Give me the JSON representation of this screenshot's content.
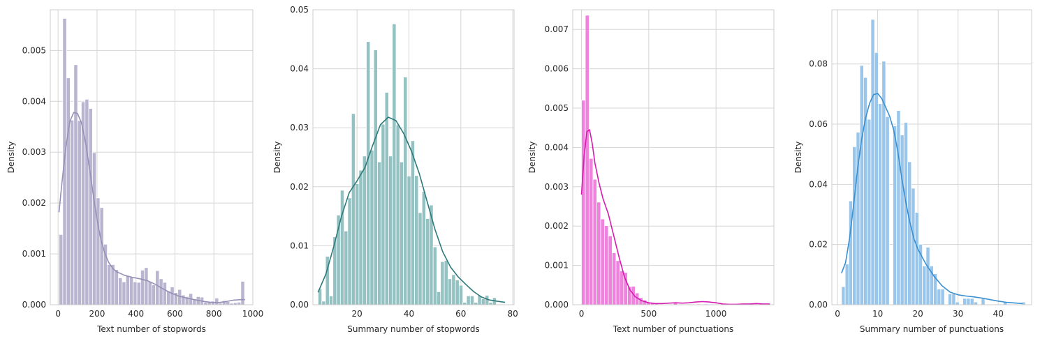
{
  "chart_data": [
    {
      "type": "bar",
      "xlabel": "Text number of stopwords",
      "ylabel": "Density",
      "xlim": [
        -40,
        1000
      ],
      "ylim": [
        0,
        0.0058
      ],
      "xticks": [
        0,
        200,
        400,
        600,
        800,
        1000
      ],
      "yticks": [
        0,
        0.001,
        0.002,
        0.003,
        0.004,
        0.005
      ],
      "ytick_labels": [
        "0.000",
        "0.001",
        "0.002",
        "0.003",
        "0.004",
        "0.005"
      ],
      "grid": true,
      "bar_color": "#b9b4cf",
      "kde_color": "#9590b6",
      "bins": {
        "start": 5,
        "width": 19.05,
        "values": [
          0.00138,
          0.00563,
          0.00446,
          0.00363,
          0.00472,
          0.00362,
          0.00399,
          0.00404,
          0.00386,
          0.00299,
          0.0021,
          0.00191,
          0.00119,
          0.00079,
          0.00079,
          0.00069,
          0.00053,
          0.00045,
          0.00057,
          0.00054,
          0.00045,
          0.00044,
          0.00068,
          0.00073,
          0.00046,
          0.00039,
          0.00067,
          0.00051,
          0.00044,
          0.00027,
          0.00035,
          0.00024,
          0.0003,
          0.00019,
          0.00016,
          0.00022,
          0.0001,
          0.00016,
          0.00015,
          5e-05,
          5e-05,
          7e-05,
          0.00013,
          3e-05,
          8e-05,
          6e-05,
          3e-05,
          4e-05,
          5e-05,
          0.00046
        ]
      },
      "kde": {
        "x": [
          5,
          20,
          40,
          60,
          80,
          100,
          120,
          140,
          160,
          180,
          200,
          220,
          240,
          260,
          280,
          300,
          340,
          380,
          420,
          460,
          500,
          540,
          580,
          620,
          660,
          700,
          740,
          780,
          820,
          860,
          900,
          940,
          960
        ],
        "y": [
          0.00182,
          0.0024,
          0.0031,
          0.0036,
          0.00378,
          0.00376,
          0.00358,
          0.00322,
          0.00272,
          0.00218,
          0.00168,
          0.00128,
          0.00101,
          0.00083,
          0.00072,
          0.00065,
          0.00058,
          0.00054,
          0.00051,
          0.00047,
          0.0004,
          0.00031,
          0.00023,
          0.00017,
          0.00013,
          0.0001,
          7e-05,
          5e-05,
          4e-05,
          6e-05,
          9e-05,
          0.0001,
          0.0001
        ]
      }
    },
    {
      "type": "bar",
      "xlabel": "Summary number of stopwords",
      "ylabel": "Density",
      "xlim": [
        3,
        80.5
      ],
      "ylim": [
        0,
        0.05
      ],
      "xticks": [
        20,
        40,
        60,
        80
      ],
      "yticks": [
        0,
        0.01,
        0.02,
        0.03,
        0.04,
        0.05
      ],
      "ytick_labels": [
        "0.00",
        "0.01",
        "0.02",
        "0.03",
        "0.04",
        "0.05"
      ],
      "grid": true,
      "bar_color": "#94c1c1",
      "kde_color": "#2e7a7a",
      "bins": {
        "start": 5,
        "width": 1.43,
        "values": [
          0.0027,
          0.0006,
          0.0082,
          0.0015,
          0.0115,
          0.0152,
          0.0194,
          0.0125,
          0.0181,
          0.0324,
          0.0205,
          0.0228,
          0.0252,
          0.0446,
          0.0262,
          0.0432,
          0.0242,
          0.0306,
          0.036,
          0.0252,
          0.0476,
          0.0305,
          0.0242,
          0.0386,
          0.0218,
          0.0278,
          0.0219,
          0.0156,
          0.0192,
          0.0146,
          0.0169,
          0.0098,
          0.0022,
          0.0073,
          0.0075,
          0.0044,
          0.0051,
          0.0042,
          0.0033,
          0.0004,
          0.0015,
          0.0015,
          0.0004,
          0.0016,
          0.001,
          0.0016,
          0.0004,
          0.0012
        ]
      },
      "kde": {
        "x": [
          5,
          8,
          11,
          14,
          17,
          20,
          23,
          26,
          29,
          32,
          35,
          38,
          41,
          44,
          47,
          50,
          53,
          56,
          59,
          62,
          65,
          68,
          71,
          74,
          77
        ],
        "y": [
          0.0021,
          0.0052,
          0.0098,
          0.015,
          0.019,
          0.021,
          0.0232,
          0.027,
          0.0305,
          0.0318,
          0.0312,
          0.029,
          0.026,
          0.0222,
          0.0175,
          0.0128,
          0.009,
          0.0064,
          0.0047,
          0.0034,
          0.0022,
          0.0013,
          0.0008,
          0.0006,
          0.0004
        ]
      }
    },
    {
      "type": "bar",
      "xlabel": "Text number of punctuations",
      "ylabel": "Density",
      "xlim": [
        -65,
        1430
      ],
      "ylim": [
        0,
        0.0075
      ],
      "xticks": [
        0,
        500,
        1000
      ],
      "yticks": [
        0,
        0.001,
        0.002,
        0.003,
        0.004,
        0.005,
        0.006,
        0.007
      ],
      "ytick_labels": [
        "0.000",
        "0.001",
        "0.002",
        "0.003",
        "0.004",
        "0.005",
        "0.006",
        "0.007"
      ],
      "grid": true,
      "bar_color": "#ee82dd",
      "kde_color": "#d61cb0",
      "bins": {
        "start": 0,
        "width": 28.5,
        "values": [
          0.0052,
          0.00736,
          0.00372,
          0.00319,
          0.00261,
          0.00218,
          0.00201,
          0.00175,
          0.00132,
          0.00112,
          0.00086,
          0.00082,
          0.00046,
          0.00047,
          0.0003,
          0.00018,
          0.00012,
          6e-05,
          4e-05,
          3e-05,
          1e-05,
          1e-05,
          0.0,
          1e-05,
          7e-05,
          1e-05,
          1e-05,
          1e-05,
          1e-05,
          1e-05,
          2e-05,
          1e-05,
          2e-05,
          1e-05,
          1e-05,
          1e-05,
          0.0,
          1e-05,
          1e-05,
          1e-05,
          0.0,
          0.0,
          0.0,
          1e-05,
          2e-05,
          2e-05,
          1e-05,
          0.0,
          2e-05,
          1e-05
        ]
      },
      "kde": {
        "x": [
          0,
          20,
          40,
          60,
          80,
          100,
          130,
          160,
          200,
          240,
          280,
          320,
          360,
          400,
          450,
          500,
          550,
          600,
          650,
          700,
          750,
          800,
          850,
          900,
          950,
          1000,
          1050,
          1100,
          1150,
          1200,
          1250,
          1300,
          1350,
          1400
        ],
        "y": [
          0.0028,
          0.0038,
          0.0044,
          0.00445,
          0.0041,
          0.0036,
          0.0031,
          0.0027,
          0.0023,
          0.00175,
          0.0012,
          0.0007,
          0.00038,
          0.0002,
          0.0001,
          5e-05,
          3e-05,
          3e-05,
          4e-05,
          5e-05,
          4e-05,
          5e-05,
          7e-05,
          8e-05,
          7e-05,
          5e-05,
          2e-05,
          1e-05,
          1e-05,
          2e-05,
          2e-05,
          3e-05,
          2e-05,
          2e-05
        ]
      }
    },
    {
      "type": "bar",
      "xlabel": "Summary number of punctuations",
      "ylabel": "Density",
      "xlim": [
        -1.4,
        48.3
      ],
      "ylim": [
        0,
        0.098
      ],
      "xticks": [
        0,
        10,
        20,
        30,
        40
      ],
      "yticks": [
        0,
        0.02,
        0.04,
        0.06,
        0.08
      ],
      "ytick_labels": [
        "0.00",
        "0.02",
        "0.04",
        "0.06",
        "0.08"
      ],
      "grid": true,
      "bar_color": "#99c6ea",
      "kde_color": "#3a8fd0",
      "bins": {
        "start": 1,
        "width": 0.915,
        "values": [
          0.006,
          0.0135,
          0.0345,
          0.0525,
          0.0573,
          0.0795,
          0.0755,
          0.0616,
          0.0948,
          0.0838,
          0.0668,
          0.0809,
          0.0625,
          0.0,
          0.0594,
          0.0645,
          0.0564,
          0.0606,
          0.0475,
          0.0387,
          0.0307,
          0.0201,
          0.0129,
          0.0191,
          0.0129,
          0.0103,
          0.0052,
          0.0052,
          0.0,
          0.0036,
          0.0036,
          0.0009,
          0.0,
          0.0021,
          0.0021,
          0.0021,
          0.0009,
          0.0,
          0.0021,
          0.0,
          0.0,
          0.0,
          0.0,
          0.0,
          0.0009,
          0.0,
          0.0,
          0.0,
          0.0,
          0.0009
        ]
      },
      "kde": {
        "x": [
          1,
          2,
          3,
          4,
          5,
          6,
          7,
          8,
          9,
          10,
          11,
          12,
          13,
          14,
          15,
          16,
          17,
          18,
          19,
          20,
          21,
          22,
          24,
          26,
          28,
          30,
          32,
          34,
          36,
          38,
          40,
          42,
          44,
          46
        ],
        "y": [
          0.0105,
          0.014,
          0.022,
          0.033,
          0.045,
          0.055,
          0.062,
          0.067,
          0.0698,
          0.0702,
          0.0685,
          0.0656,
          0.0625,
          0.058,
          0.051,
          0.042,
          0.034,
          0.0275,
          0.022,
          0.0185,
          0.016,
          0.0135,
          0.0095,
          0.0063,
          0.0042,
          0.0033,
          0.0029,
          0.0026,
          0.0022,
          0.0017,
          0.0012,
          0.0008,
          0.0006,
          0.0004
        ]
      }
    }
  ]
}
